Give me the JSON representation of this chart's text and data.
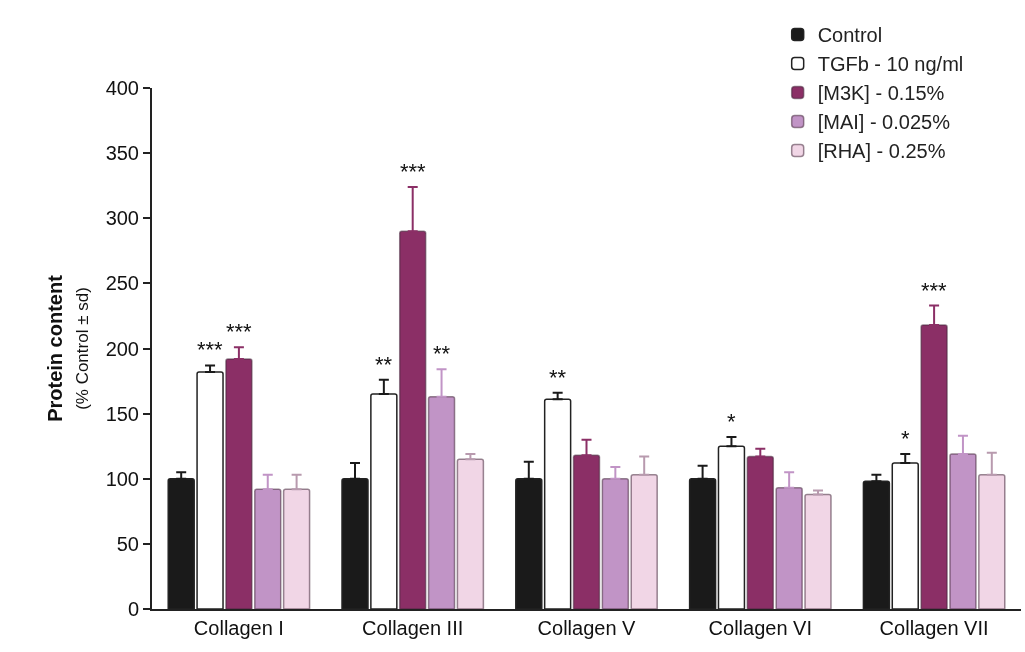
{
  "chart_data": {
    "type": "bar",
    "ylabel": "Protein content\n(% Control ± sd)",
    "categories": [
      "Collagen I",
      "Collagen III",
      "Collagen V",
      "Collagen VI",
      "Collagen VII"
    ],
    "series": [
      {
        "name": "Control",
        "color": "#1a1a1a",
        "values": [
          100,
          100,
          100,
          100,
          98
        ],
        "errors": [
          [
            100,
            105
          ],
          [
            100,
            112
          ],
          [
            100,
            113
          ],
          [
            100,
            110
          ],
          [
            98,
            103
          ]
        ],
        "value_labels": [
          null,
          null,
          null,
          null,
          null
        ]
      },
      {
        "name": "TGFb - 10 ng/ml",
        "color": "#ffffff",
        "values": [
          182,
          165,
          161,
          125,
          112
        ],
        "errors": [
          [
            182,
            187
          ],
          [
            165,
            176
          ],
          [
            161,
            166
          ],
          [
            125,
            132
          ],
          [
            112,
            119
          ]
        ],
        "value_labels": [
          "***",
          "**",
          "**",
          "*",
          "*"
        ]
      },
      {
        "name": "[M3K] - 0.15%",
        "color": "#8b2f66",
        "values": [
          192,
          290,
          118,
          117,
          218
        ],
        "errors": [
          [
            192,
            201
          ],
          [
            290,
            324
          ],
          [
            118,
            130
          ],
          [
            117,
            123
          ],
          [
            218,
            233
          ]
        ],
        "value_labels": [
          "***",
          "***",
          null,
          null,
          "***"
        ]
      },
      {
        "name": "[MAI] - 0.025%",
        "color": "#c194c6",
        "values": [
          92,
          163,
          100,
          93,
          119
        ],
        "errors": [
          [
            92,
            103
          ],
          [
            163,
            184
          ],
          [
            100,
            109
          ],
          [
            93,
            105
          ],
          [
            119,
            133
          ]
        ],
        "value_labels": [
          null,
          "**",
          null,
          null,
          null
        ]
      },
      {
        "name": "[RHA] - 0.25%",
        "color": "#f1d6e6",
        "values": [
          92,
          115,
          103,
          88,
          103
        ],
        "errors": [
          [
            92,
            103
          ],
          [
            115,
            119
          ],
          [
            103,
            117
          ],
          [
            88,
            91
          ],
          [
            103,
            120
          ]
        ],
        "value_labels": [
          null,
          null,
          null,
          null,
          null
        ]
      }
    ],
    "ylim": [
      0,
      400
    ],
    "yticks": [
      0,
      50,
      100,
      150,
      200,
      250,
      300,
      350,
      400
    ],
    "grid": false,
    "legend": "top right"
  }
}
